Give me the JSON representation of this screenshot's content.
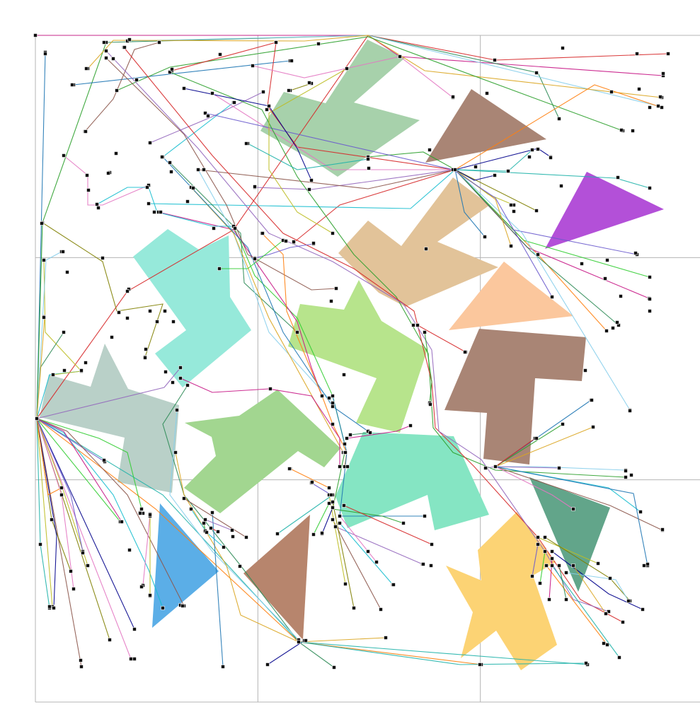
{
  "figure": {
    "description_free": true,
    "grid": {
      "divisions": 3,
      "visible": true,
      "line_color": "#b4b4b4"
    },
    "obstacles": [
      {
        "kind": "polygon",
        "color": "#a7d1ab"
      },
      {
        "kind": "polygon",
        "color": "#a98575"
      },
      {
        "kind": "polygon",
        "color": "#b350d8"
      },
      {
        "kind": "polygon",
        "color": "#e2c399"
      },
      {
        "kind": "polygon",
        "color": "#fbc79d"
      },
      {
        "kind": "polygon",
        "color": "#96e9da"
      },
      {
        "kind": "polygon",
        "color": "#b7e48c"
      },
      {
        "kind": "polygon",
        "color": "#a98575"
      },
      {
        "kind": "polygon",
        "color": "#b9d0c8"
      },
      {
        "kind": "polygon",
        "color": "#a2d690"
      },
      {
        "kind": "polygon",
        "color": "#85e5c3"
      },
      {
        "kind": "polygon",
        "color": "#62a58a"
      },
      {
        "kind": "polygon",
        "color": "#5baee7"
      },
      {
        "kind": "polygon",
        "color": "#b7856d"
      },
      {
        "kind": "polygon",
        "color": "#fcd374"
      }
    ],
    "route_palette": [
      "#1f77b4",
      "#2ca02c",
      "#d62728",
      "#9467bd",
      "#17becf",
      "#8c564b",
      "#e377c2",
      "#bcbd22",
      "#7f7f00",
      "#00008b",
      "#20b2aa",
      "#ff7f0e",
      "#6a5acd",
      "#32cd32",
      "#c71585",
      "#2e8b57",
      "#87ceeb",
      "#daa520"
    ],
    "node_color": "#111111"
  }
}
